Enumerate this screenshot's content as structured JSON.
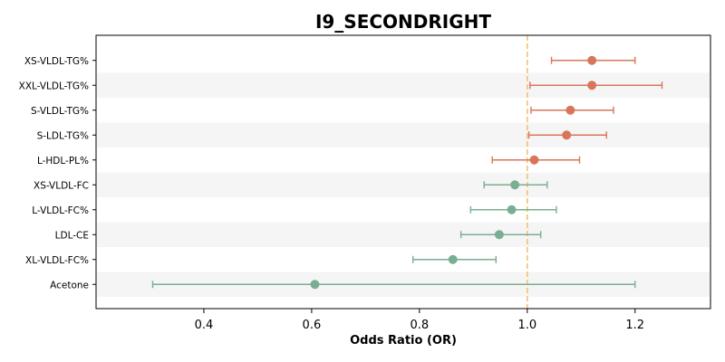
{
  "chart_data": {
    "type": "forest",
    "title": "I9_SECONDRIGHT",
    "xlabel": "Odds Ratio (OR)",
    "ylabel": "",
    "xlim": [
      0.2,
      1.34
    ],
    "xticks": [
      "0.4",
      "0.6",
      "0.8",
      "1.0",
      "1.2"
    ],
    "reference_line": 1.0,
    "reference_color": "#f5c26b",
    "row_shading": "alternating",
    "colors": {
      "positive": "#d9765a",
      "negative": "#7aae92",
      "band": "#f5f5f5"
    },
    "rows": [
      {
        "label": "XS-VLDL-TG%",
        "or": 1.12,
        "lo": 1.045,
        "hi": 1.2,
        "color": "positive"
      },
      {
        "label": "XXL-VLDL-TG%",
        "or": 1.12,
        "lo": 1.005,
        "hi": 1.25,
        "color": "positive"
      },
      {
        "label": "S-VLDL-TG%",
        "or": 1.08,
        "lo": 1.007,
        "hi": 1.16,
        "color": "positive"
      },
      {
        "label": "S-LDL-TG%",
        "or": 1.073,
        "lo": 1.003,
        "hi": 1.147,
        "color": "positive"
      },
      {
        "label": "L-HDL-PL%",
        "or": 1.013,
        "lo": 0.935,
        "hi": 1.097,
        "color": "positive"
      },
      {
        "label": "XS-VLDL-FC",
        "or": 0.977,
        "lo": 0.92,
        "hi": 1.037,
        "color": "negative"
      },
      {
        "label": "L-VLDL-FC%",
        "or": 0.971,
        "lo": 0.895,
        "hi": 1.054,
        "color": "negative"
      },
      {
        "label": "LDL-CE",
        "or": 0.948,
        "lo": 0.877,
        "hi": 1.025,
        "color": "negative"
      },
      {
        "label": "XL-VLDL-FC%",
        "or": 0.862,
        "lo": 0.788,
        "hi": 0.942,
        "color": "negative"
      },
      {
        "label": "Acetone",
        "or": 0.606,
        "lo": 0.305,
        "hi": 1.2,
        "color": "negative"
      }
    ]
  }
}
